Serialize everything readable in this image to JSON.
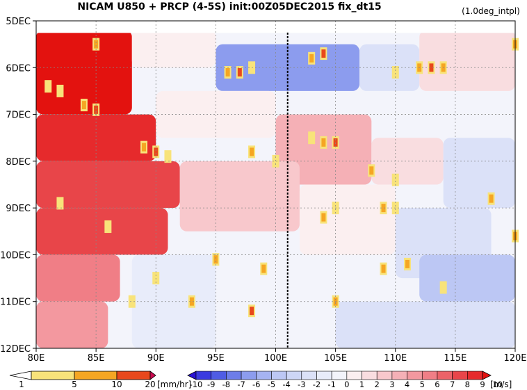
{
  "chart_data": {
    "type": "heatmap",
    "title": "NICAM   U850  +  PRCP (4-5S) init:00Z05DEC2015  fix_dt15",
    "subtitle": "(1.0deg_intpl)",
    "x_ticks": [
      "80E",
      "85E",
      "90E",
      "95E",
      "100E",
      "105E",
      "110E",
      "115E",
      "120E"
    ],
    "x_tick_values": [
      80,
      85,
      90,
      95,
      100,
      105,
      110,
      115,
      120
    ],
    "xlim": [
      80,
      120
    ],
    "y_ticks": [
      "5DEC",
      "6DEC",
      "7DEC",
      "8DEC",
      "9DEC",
      "10DEC",
      "11DEC",
      "12DEC"
    ],
    "y_tick_values": [
      5,
      6,
      7,
      8,
      9,
      10,
      11,
      12
    ],
    "ylim": [
      5,
      12
    ],
    "reference_line_x": 101,
    "prcp_legend": {
      "levels": [
        "1",
        "5",
        "10",
        "20"
      ],
      "unit": "[mm/hr]",
      "colors": [
        "#ffffff",
        "#f8e37a",
        "#f5a623",
        "#e8481c",
        "#cc0a50"
      ]
    },
    "u850_legend": {
      "levels": [
        "-10",
        "-9",
        "-8",
        "-7",
        "-6",
        "-5",
        "-4",
        "-3",
        "-2",
        "-1",
        "0",
        "1",
        "2",
        "3",
        "4",
        "5",
        "6",
        "7",
        "8",
        "9",
        "10"
      ],
      "unit": "[m/s]",
      "colors": [
        "#2a12d6",
        "#3a3adf",
        "#4f5ce4",
        "#6d7de9",
        "#8c9cee",
        "#a5b3f1",
        "#bcc7f4",
        "#cdd6f6",
        "#dbe1f8",
        "#e8ecfa",
        "#f3f4fb",
        "#fbeff0",
        "#f9dde0",
        "#f8c8cc",
        "#f5b0b6",
        "#f3989f",
        "#f07e86",
        "#ec6268",
        "#e84549",
        "#e62a2c",
        "#e3120f"
      ]
    },
    "u850_field": {
      "description_keys": [
        "x_start",
        "x_end",
        "y_start",
        "y_end",
        "u"
      ],
      "regions": [
        [
          80,
          88,
          5.2,
          7.0,
          9.5
        ],
        [
          80,
          90,
          7.0,
          8.0,
          9
        ],
        [
          80,
          92,
          8.0,
          9.0,
          8
        ],
        [
          80,
          91,
          9.0,
          10.0,
          8
        ],
        [
          80,
          87,
          10.0,
          11.0,
          6
        ],
        [
          80,
          86,
          11.0,
          12.0,
          5
        ],
        [
          88,
          95,
          5.2,
          6.0,
          1
        ],
        [
          95,
          107,
          5.5,
          6.5,
          -6
        ],
        [
          107,
          112,
          5.5,
          6.5,
          -2
        ],
        [
          112,
          120,
          5.2,
          6.5,
          2
        ],
        [
          90,
          100,
          6.5,
          7.5,
          1
        ],
        [
          100,
          108,
          7.0,
          8.5,
          4
        ],
        [
          108,
          114,
          7.5,
          8.5,
          2
        ],
        [
          114,
          120,
          7.5,
          9.0,
          -2
        ],
        [
          92,
          102,
          8.0,
          9.5,
          3
        ],
        [
          102,
          110,
          8.5,
          10.0,
          1
        ],
        [
          110,
          118,
          9.0,
          10.5,
          -2
        ],
        [
          112,
          120,
          10.0,
          11.0,
          -4
        ],
        [
          88,
          95,
          10.0,
          12.0,
          -1
        ],
        [
          95,
          105,
          10.5,
          12.0,
          0
        ],
        [
          105,
          120,
          11.0,
          12.0,
          -2
        ]
      ]
    },
    "prcp_cells": [
      [
        81,
        6.4,
        5
      ],
      [
        82,
        6.5,
        5
      ],
      [
        84,
        6.8,
        10
      ],
      [
        85,
        6.9,
        20
      ],
      [
        85,
        5.5,
        10
      ],
      [
        89,
        7.7,
        10
      ],
      [
        90,
        7.8,
        20
      ],
      [
        91,
        7.9,
        5
      ],
      [
        96,
        6.1,
        10
      ],
      [
        97,
        6.1,
        20
      ],
      [
        98,
        6.0,
        5
      ],
      [
        103,
        7.5,
        5
      ],
      [
        104,
        7.6,
        10
      ],
      [
        105,
        7.6,
        20
      ],
      [
        103,
        5.8,
        10
      ],
      [
        104,
        5.7,
        20
      ],
      [
        112,
        6.0,
        10
      ],
      [
        113,
        6.0,
        20
      ],
      [
        114,
        6.0,
        10
      ],
      [
        110,
        6.1,
        5
      ],
      [
        98,
        7.8,
        10
      ],
      [
        104,
        9.2,
        10
      ],
      [
        105,
        9.0,
        5
      ],
      [
        110,
        9.0,
        5
      ],
      [
        109,
        9.0,
        10
      ],
      [
        95,
        10.1,
        10
      ],
      [
        99,
        10.3,
        10
      ],
      [
        93,
        11.0,
        10
      ],
      [
        98,
        11.2,
        20
      ],
      [
        105,
        11.0,
        10
      ],
      [
        109,
        10.3,
        10
      ],
      [
        111,
        10.2,
        10
      ],
      [
        114,
        10.7,
        5
      ],
      [
        120,
        9.6,
        10
      ],
      [
        118,
        8.8,
        10
      ],
      [
        110,
        8.4,
        5
      ],
      [
        108,
        8.2,
        10
      ],
      [
        90,
        10.5,
        5
      ],
      [
        88,
        11.0,
        5
      ],
      [
        100,
        8.0,
        5
      ],
      [
        120,
        5.5,
        10
      ],
      [
        86,
        9.4,
        5
      ],
      [
        82,
        8.9,
        5
      ]
    ]
  }
}
